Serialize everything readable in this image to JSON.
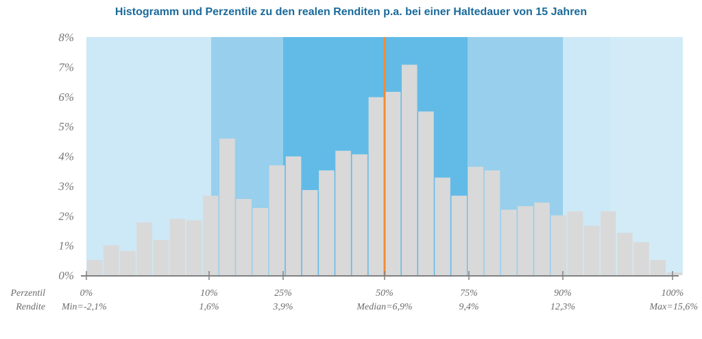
{
  "chart_data": {
    "type": "bar",
    "title": "Histogramm und Perzentile zu den realen Renditen p.a. bei einer Haltedauer von 15 Jahren",
    "xlabel": "",
    "ylabel": "",
    "ylim": [
      0,
      8
    ],
    "yticks": [
      "0%",
      "1%",
      "2%",
      "3%",
      "4%",
      "5%",
      "6%",
      "7%",
      "8%"
    ],
    "grid": false,
    "x_range": [
      -2.1,
      15.6
    ],
    "bin_count": 36,
    "values": [
      0.51,
      1.0,
      0.81,
      1.77,
      1.18,
      1.89,
      1.84,
      2.67,
      4.59,
      2.56,
      2.26,
      3.69,
      3.99,
      2.86,
      3.52,
      4.18,
      4.06,
      5.98,
      6.16,
      7.07,
      5.5,
      3.28,
      2.67,
      3.64,
      3.52,
      2.2,
      2.32,
      2.44,
      2.01,
      2.14,
      1.66,
      2.14,
      1.42,
      1.11,
      0.51,
      0.09
    ],
    "row_labels": {
      "percentile": "Perzentil",
      "return": "Rendite"
    },
    "percentiles": [
      {
        "p": "0%",
        "label": "Min=-2,1%",
        "value": -2.1
      },
      {
        "p": "10%",
        "label": "1,6%",
        "value": 1.6
      },
      {
        "p": "25%",
        "label": "3,9%",
        "value": 3.9
      },
      {
        "p": "50%",
        "label": "Median=6,9%",
        "value": 6.9
      },
      {
        "p": "75%",
        "label": "9,4%",
        "value": 9.4
      },
      {
        "p": "90%",
        "label": "12,3%",
        "value": 12.3
      },
      {
        "p": "100%",
        "label": "Max=15,6%",
        "value": 15.6
      }
    ],
    "bands": [
      {
        "from": -2.1,
        "to": 1.6,
        "shade": "light"
      },
      {
        "from": 1.6,
        "to": 3.9,
        "shade": "mid"
      },
      {
        "from": 3.9,
        "to": 9.4,
        "shade": "dark"
      },
      {
        "from": 9.4,
        "to": 12.3,
        "shade": "mid"
      },
      {
        "from": 12.3,
        "to": 15.6,
        "shade": "light"
      }
    ],
    "median": 6.9,
    "colors": {
      "bar": "#d9d9d9",
      "band_light": "#cde8f6",
      "band_mid": "#97cfec",
      "band_dark": "#62bbe7",
      "median": "#f48a32",
      "axis": "#808080",
      "title": "#1a6a9a"
    }
  }
}
